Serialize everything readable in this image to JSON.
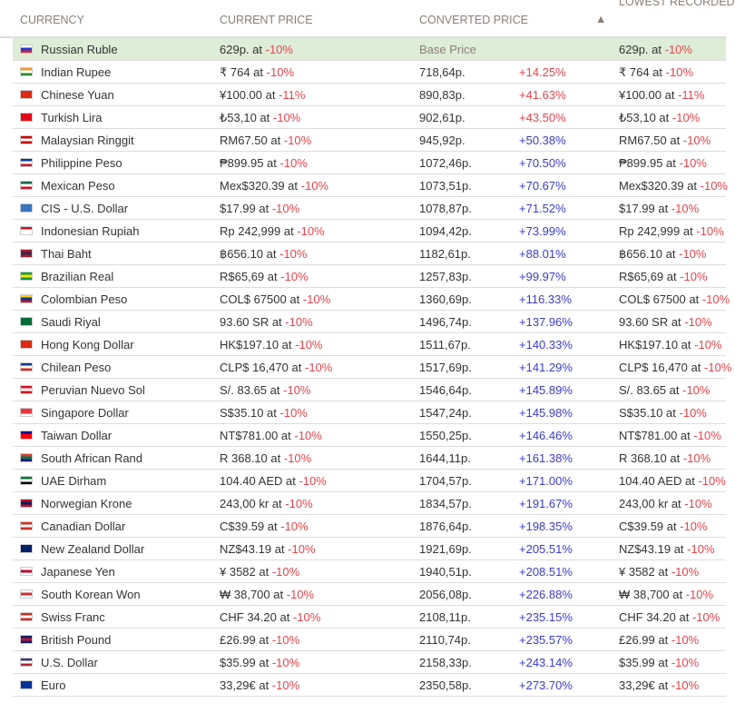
{
  "headers": {
    "currency": "CURRENCY",
    "current": "CURRENT PRICE",
    "converted": "CONVERTED PRICE",
    "lowest": "LOWEST RECORDED"
  },
  "colors": {
    "negative": "#e8434b",
    "low_change": "#e8434b",
    "high_change": "#3b3bd6",
    "base_row": "#deedd7"
  },
  "rows": [
    {
      "flag": [
        "#fff",
        "#1c3fd1",
        "#e0202a"
      ],
      "name": "Russian Ruble",
      "price": "629p. at",
      "pct": "-10%",
      "converted": "Base Price",
      "change": "",
      "color": "",
      "low": "629p. at",
      "low_pct": "-10%"
    },
    {
      "flag": [
        "#f39a2c",
        "#fff",
        "#2a8a2a"
      ],
      "name": "Indian Rupee",
      "price": "₹ 764 at",
      "pct": "-10%",
      "converted": "718,64p.",
      "change": "+14.25%",
      "color": "#e8434b",
      "low": "₹ 764 at",
      "low_pct": "-10%"
    },
    {
      "flag": [
        "#de2910",
        "#de2910",
        "#de2910"
      ],
      "name": "Chinese Yuan",
      "price": "¥100.00 at",
      "pct": "-11%",
      "converted": "890,83p.",
      "change": "+41.63%",
      "color": "#e8434b",
      "low": "¥100.00 at",
      "low_pct": "-11%"
    },
    {
      "flag": [
        "#e30a17",
        "#e30a17",
        "#e30a17"
      ],
      "name": "Turkish Lira",
      "price": "₺53,10 at",
      "pct": "-10%",
      "converted": "902,61p.",
      "change": "+43.50%",
      "color": "#e8434b",
      "low": "₺53,10 at",
      "low_pct": "-10%"
    },
    {
      "flag": [
        "#cc0000",
        "#fff",
        "#cc0000"
      ],
      "name": "Malaysian Ringgit",
      "price": "RM67.50 at",
      "pct": "-10%",
      "converted": "945,92p.",
      "change": "+50.38%",
      "color": "#3b3bd6",
      "low": "RM67.50 at",
      "low_pct": "-10%"
    },
    {
      "flag": [
        "#0038a8",
        "#fff",
        "#ce1126"
      ],
      "name": "Philippine Peso",
      "price": "₱899.95 at",
      "pct": "-10%",
      "converted": "1072,46p.",
      "change": "+70.50%",
      "color": "#3b3bd6",
      "low": "₱899.95 at",
      "low_pct": "-10%"
    },
    {
      "flag": [
        "#006847",
        "#fff",
        "#ce1126"
      ],
      "name": "Mexican Peso",
      "price": "Mex$320.39 at",
      "pct": "-10%",
      "converted": "1073,51p.",
      "change": "+70.67%",
      "color": "#3b3bd6",
      "low": "Mex$320.39 at",
      "low_pct": "-10%"
    },
    {
      "flag": [
        "#3a75c4",
        "#3a75c4",
        "#3a75c4"
      ],
      "name": "CIS - U.S. Dollar",
      "price": "$17.99 at",
      "pct": "-10%",
      "converted": "1078,87p.",
      "change": "+71.52%",
      "color": "#3b3bd6",
      "low": "$17.99 at",
      "low_pct": "-10%"
    },
    {
      "flag": [
        "#ce1126",
        "#fff",
        "#fff"
      ],
      "name": "Indonesian Rupiah",
      "price": "Rp 242,999 at",
      "pct": "-10%",
      "converted": "1094,42p.",
      "change": "+73.99%",
      "color": "#3b3bd6",
      "low": "Rp 242,999 at",
      "low_pct": "-10%"
    },
    {
      "flag": [
        "#a51931",
        "#2d2a4a",
        "#a51931"
      ],
      "name": "Thai Baht",
      "price": "฿656.10 at",
      "pct": "-10%",
      "converted": "1182,61p.",
      "change": "+88.01%",
      "color": "#3b3bd6",
      "low": "฿656.10 at",
      "low_pct": "-10%"
    },
    {
      "flag": [
        "#009c3b",
        "#ffdf00",
        "#009c3b"
      ],
      "name": "Brazilian Real",
      "price": "R$65,69 at",
      "pct": "-10%",
      "converted": "1257,83p.",
      "change": "+99.97%",
      "color": "#3b3bd6",
      "low": "R$65,69 at",
      "low_pct": "-10%"
    },
    {
      "flag": [
        "#fcd116",
        "#003893",
        "#ce1126"
      ],
      "name": "Colombian Peso",
      "price": "COL$ 67500 at",
      "pct": "-10%",
      "converted": "1360,69p.",
      "change": "+116.33%",
      "color": "#3b3bd6",
      "low": "COL$ 67500 at",
      "low_pct": "-10%"
    },
    {
      "flag": [
        "#006c35",
        "#006c35",
        "#006c35"
      ],
      "name": "Saudi Riyal",
      "price": "93.60 SR at",
      "pct": "-10%",
      "converted": "1496,74p.",
      "change": "+137.96%",
      "color": "#3b3bd6",
      "low": "93.60 SR at",
      "low_pct": "-10%"
    },
    {
      "flag": [
        "#de2910",
        "#de2910",
        "#de2910"
      ],
      "name": "Hong Kong Dollar",
      "price": "HK$197.10 at",
      "pct": "-10%",
      "converted": "1511,67p.",
      "change": "+140.33%",
      "color": "#3b3bd6",
      "low": "HK$197.10 at",
      "low_pct": "-10%"
    },
    {
      "flag": [
        "#0039a6",
        "#fff",
        "#d52b1e"
      ],
      "name": "Chilean Peso",
      "price": "CLP$ 16,470 at",
      "pct": "-10%",
      "converted": "1517,69p.",
      "change": "+141.29%",
      "color": "#3b3bd6",
      "low": "CLP$ 16,470 at",
      "low_pct": "-10%"
    },
    {
      "flag": [
        "#d91023",
        "#fff",
        "#d91023"
      ],
      "name": "Peruvian Nuevo Sol",
      "price": "S/. 83.65 at",
      "pct": "-10%",
      "converted": "1546,64p.",
      "change": "+145.89%",
      "color": "#3b3bd6",
      "low": "S/. 83.65 at",
      "low_pct": "-10%"
    },
    {
      "flag": [
        "#ef3340",
        "#ef3340",
        "#fff"
      ],
      "name": "Singapore Dollar",
      "price": "S$35.10 at",
      "pct": "-10%",
      "converted": "1547,24p.",
      "change": "+145.98%",
      "color": "#3b3bd6",
      "low": "S$35.10 at",
      "low_pct": "-10%"
    },
    {
      "flag": [
        "#000095",
        "#fe0000",
        "#fe0000"
      ],
      "name": "Taiwan Dollar",
      "price": "NT$781.00 at",
      "pct": "-10%",
      "converted": "1550,25p.",
      "change": "+146.46%",
      "color": "#3b3bd6",
      "low": "NT$781.00 at",
      "low_pct": "-10%"
    },
    {
      "flag": [
        "#e03c31",
        "#007749",
        "#001489"
      ],
      "name": "South African Rand",
      "price": "R 368.10 at",
      "pct": "-10%",
      "converted": "1644,11p.",
      "change": "+161.38%",
      "color": "#3b3bd6",
      "low": "R 368.10 at",
      "low_pct": "-10%"
    },
    {
      "flag": [
        "#00732f",
        "#fff",
        "#000"
      ],
      "name": "UAE Dirham",
      "price": "104.40 AED at",
      "pct": "-10%",
      "converted": "1704,57p.",
      "change": "+171.00%",
      "color": "#3b3bd6",
      "low": "104.40 AED at",
      "low_pct": "-10%"
    },
    {
      "flag": [
        "#ba0c2f",
        "#00205b",
        "#ba0c2f"
      ],
      "name": "Norwegian Krone",
      "price": "243,00 kr at",
      "pct": "-10%",
      "converted": "1834,57p.",
      "change": "+191.67%",
      "color": "#3b3bd6",
      "low": "243,00 kr at",
      "low_pct": "-10%"
    },
    {
      "flag": [
        "#d52b1e",
        "#fff",
        "#d52b1e"
      ],
      "name": "Canadian Dollar",
      "price": "C$39.59 at",
      "pct": "-10%",
      "converted": "1876,64p.",
      "change": "+198.35%",
      "color": "#3b3bd6",
      "low": "C$39.59 at",
      "low_pct": "-10%"
    },
    {
      "flag": [
        "#012169",
        "#012169",
        "#012169"
      ],
      "name": "New Zealand Dollar",
      "price": "NZ$43.19 at",
      "pct": "-10%",
      "converted": "1921,69p.",
      "change": "+205.51%",
      "color": "#3b3bd6",
      "low": "NZ$43.19 at",
      "low_pct": "-10%"
    },
    {
      "flag": [
        "#fff",
        "#bc002d",
        "#fff"
      ],
      "name": "Japanese Yen",
      "price": "¥ 3582 at",
      "pct": "-10%",
      "converted": "1940,51p.",
      "change": "+208.51%",
      "color": "#3b3bd6",
      "low": "¥ 3582 at",
      "low_pct": "-10%"
    },
    {
      "flag": [
        "#fff",
        "#cd2e3a",
        "#fff"
      ],
      "name": "South Korean Won",
      "price": "₩ 38,700 at",
      "pct": "-10%",
      "converted": "2056,08p.",
      "change": "+226.88%",
      "color": "#3b3bd6",
      "low": "₩ 38,700 at",
      "low_pct": "-10%"
    },
    {
      "flag": [
        "#d52b1e",
        "#fff",
        "#d52b1e"
      ],
      "name": "Swiss Franc",
      "price": "CHF 34.20 at",
      "pct": "-10%",
      "converted": "2108,11p.",
      "change": "+235.15%",
      "color": "#3b3bd6",
      "low": "CHF 34.20 at",
      "low_pct": "-10%"
    },
    {
      "flag": [
        "#012169",
        "#c8102e",
        "#012169"
      ],
      "name": "British Pound",
      "price": "£26.99 at",
      "pct": "-10%",
      "converted": "2110,74p.",
      "change": "+235.57%",
      "color": "#3b3bd6",
      "low": "£26.99 at",
      "low_pct": "-10%"
    },
    {
      "flag": [
        "#3c3b6e",
        "#fff",
        "#b22234"
      ],
      "name": "U.S. Dollar",
      "price": "$35.99 at",
      "pct": "-10%",
      "converted": "2158,33p.",
      "change": "+243.14%",
      "color": "#3b3bd6",
      "low": "$35.99 at",
      "low_pct": "-10%"
    },
    {
      "flag": [
        "#003399",
        "#003399",
        "#003399"
      ],
      "name": "Euro",
      "price": "33,29€ at",
      "pct": "-10%",
      "converted": "2350,58p.",
      "change": "+273.70%",
      "color": "#3b3bd6",
      "low": "33,29€ at",
      "low_pct": "-10%"
    }
  ]
}
